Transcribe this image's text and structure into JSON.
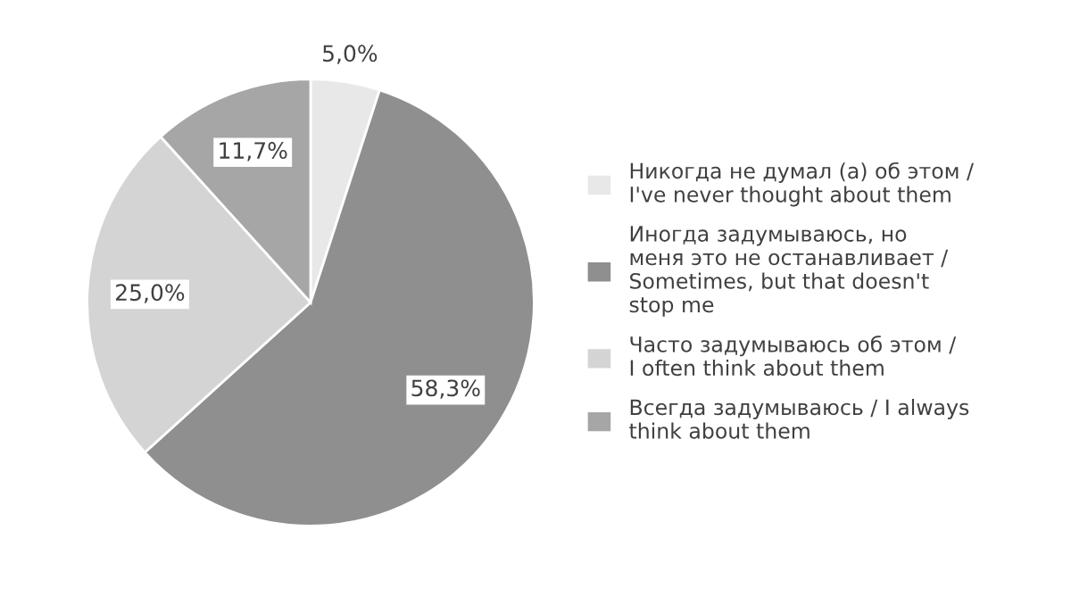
{
  "chart_data": {
    "type": "pie",
    "categories": [
      "Никогда не думал (а) об этом /\nI've never thought about them",
      "Иногда задумываюсь, но\nменя это не останавливает /\nSometimes, but that doesn't\nstop me",
      "Часто задумываюсь об этом /\nI often think about them",
      "Всегда задумываюсь / I always\nthink about them"
    ],
    "values": [
      5.0,
      58.3,
      25.0,
      11.7
    ],
    "value_labels": [
      "5,0%",
      "58,3%",
      "25,0%",
      "11,7%"
    ],
    "colors": [
      "#e8e8e8",
      "#8f8f8f",
      "#d4d4d4",
      "#a6a6a6"
    ],
    "legend": "right"
  }
}
